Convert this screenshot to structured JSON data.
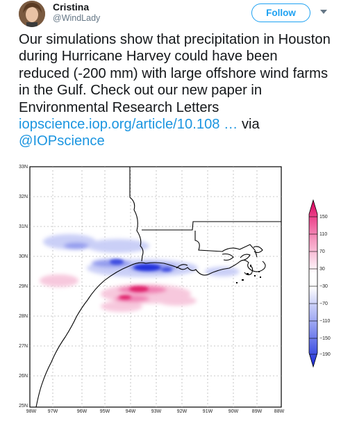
{
  "author": {
    "name": "Cristina",
    "handle": "@WindLady"
  },
  "follow_label": "Follow",
  "tweet": {
    "text": "Our simulations show that precipitation in Houston during Hurricane Harvey could have been reduced (-200 mm) with large offshore wind farms in the Gulf. Check out our new paper in Environmental Research Letters ",
    "link": "iopscience.iop.org/article/10.108 …",
    "via": " via ",
    "mention": "@IOPscience"
  },
  "map": {
    "lat_labels": [
      "33N",
      "32N",
      "31N",
      "30N",
      "29N",
      "28N",
      "27N",
      "26N",
      "25N"
    ],
    "lon_labels": [
      "98W",
      "97W",
      "96W",
      "95W",
      "94W",
      "93W",
      "92W",
      "91W",
      "90W",
      "89W",
      "88W"
    ],
    "colorbar_labels": [
      "150",
      "110",
      "70",
      "30",
      "−30",
      "−70",
      "−110",
      "−150",
      "−190"
    ],
    "colors": {
      "positive_strong": "#e0206b",
      "positive_mid": "#f07ab0",
      "positive_light": "#f7c6dc",
      "negative_light": "#c8cdf7",
      "negative_mid": "#7f8af0",
      "negative_strong": "#2233dd"
    }
  }
}
